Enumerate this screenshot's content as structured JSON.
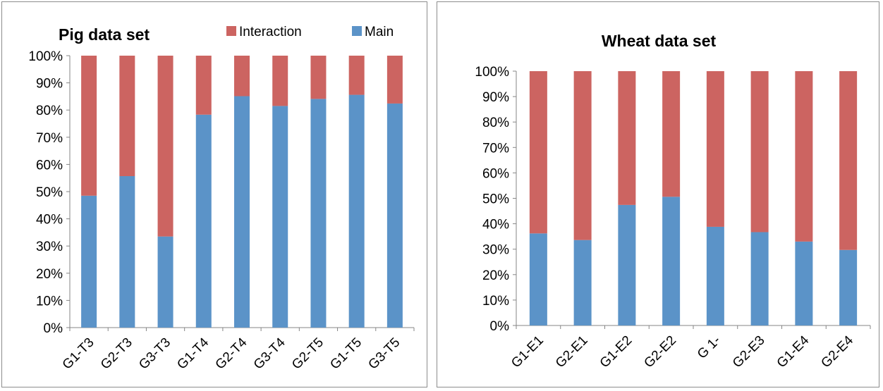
{
  "colors": {
    "main": "#5b93c8",
    "interaction": "#cc6461",
    "axis": "#868686"
  },
  "chart_data": [
    {
      "type": "bar",
      "stacked": true,
      "title": "Pig data set",
      "categories": [
        "G1-T3",
        "G2-T3",
        "G3-T3",
        "G1-T4",
        "G2-T4",
        "G3-T4",
        "G2-T5",
        "G1-T5",
        "G3-T5"
      ],
      "series": [
        {
          "name": "Main",
          "values": [
            48.5,
            55.7,
            33.5,
            78.3,
            85.1,
            81.5,
            84.1,
            85.6,
            82.4
          ]
        },
        {
          "name": "Interaction",
          "values": [
            51.5,
            44.3,
            66.5,
            21.7,
            14.9,
            18.5,
            15.9,
            14.4,
            17.6
          ]
        }
      ],
      "yticks": [
        "0%",
        "10%",
        "20%",
        "30%",
        "40%",
        "50%",
        "60%",
        "70%",
        "80%",
        "90%",
        "100%"
      ],
      "ylim": [
        0,
        100
      ],
      "legend": "top-right",
      "grid": false
    },
    {
      "type": "bar",
      "stacked": true,
      "title": "Wheat data set",
      "categories": [
        "G1-E1",
        "G2-E1",
        "G1-E2",
        "G2-E2",
        "G 1-",
        "G2-E3",
        "G1-E4",
        "G2-E4"
      ],
      "series": [
        {
          "name": "Main",
          "values": [
            36.2,
            33.6,
            47.4,
            50.6,
            38.8,
            36.7,
            33.0,
            29.7
          ]
        },
        {
          "name": "Interaction",
          "values": [
            63.8,
            66.4,
            52.6,
            49.4,
            61.2,
            63.3,
            67.0,
            70.3
          ]
        }
      ],
      "yticks": [
        "0%",
        "10%",
        "20%",
        "30%",
        "40%",
        "50%",
        "60%",
        "70%",
        "80%",
        "90%",
        "100%"
      ],
      "ylim": [
        0,
        100
      ],
      "grid": false
    }
  ]
}
